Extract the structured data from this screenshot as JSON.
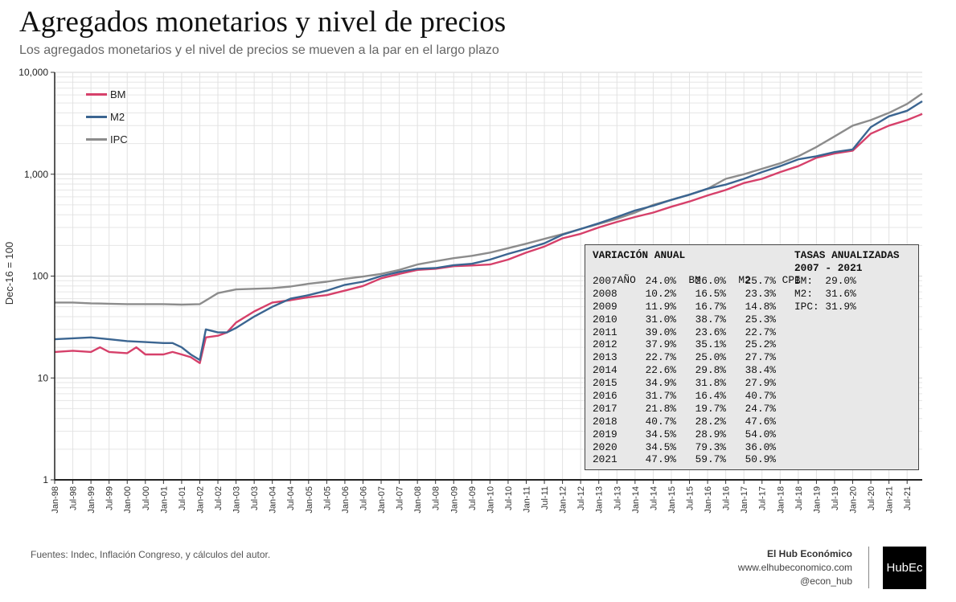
{
  "header": {
    "title": "Agregados monetarios y nivel de precios",
    "subtitle": "Los agregados monetarios y el nivel de precios se mueven a la par en el largo plazo"
  },
  "footer": {
    "sources": "Fuentes: Indec, Inflación Congreso, y cálculos del autor.",
    "brand_name": "El Hub Económico",
    "brand_url": "www.elhubeconomico.com",
    "brand_handle": "@econ_hub",
    "logo_text": "HubEc"
  },
  "colors": {
    "BM": "#d6406a",
    "M2": "#3b6591",
    "IPC": "#8c8c8c",
    "table_bg": "#e8e8e8",
    "grid": "#dddddd"
  },
  "table": {
    "heading": "VARIACIÓN ANUAL",
    "columns": [
      "AÑO",
      "BM",
      "M2",
      "CPI"
    ],
    "rows": [
      [
        "2007",
        "24.0%",
        "26.0%",
        "25.7%"
      ],
      [
        "2008",
        "10.2%",
        "16.5%",
        "23.3%"
      ],
      [
        "2009",
        "11.9%",
        "16.7%",
        "14.8%"
      ],
      [
        "2010",
        "31.0%",
        "38.7%",
        "25.3%"
      ],
      [
        "2011",
        "39.0%",
        "23.6%",
        "22.7%"
      ],
      [
        "2012",
        "37.9%",
        "35.1%",
        "25.2%"
      ],
      [
        "2013",
        "22.7%",
        "25.0%",
        "27.7%"
      ],
      [
        "2014",
        "22.6%",
        "29.8%",
        "38.4%"
      ],
      [
        "2015",
        "34.9%",
        "31.8%",
        "27.9%"
      ],
      [
        "2016",
        "31.7%",
        "16.4%",
        "40.7%"
      ],
      [
        "2017",
        "21.8%",
        "19.7%",
        "24.7%"
      ],
      [
        "2018",
        "40.7%",
        "28.2%",
        "47.6%"
      ],
      [
        "2019",
        "34.5%",
        "28.9%",
        "54.0%"
      ],
      [
        "2020",
        "34.5%",
        "79.3%",
        "36.0%"
      ],
      [
        "2021",
        "47.9%",
        "59.7%",
        "50.9%"
      ]
    ],
    "rates_heading_1": "TASAS ANUALIZADAS",
    "rates_heading_2": "2007 - 2021",
    "rates": [
      "BM:  29.0%",
      "M2:  31.6%",
      "IPC: 31.9%"
    ]
  },
  "chart_data": {
    "type": "line",
    "title": "Agregados monetarios y nivel de precios",
    "subtitle": "Los agregados monetarios y el nivel de precios se mueven a la par en el largo plazo",
    "xlabel": "",
    "ylabel": "Dec-16 = 100",
    "y_scale": "log",
    "ylim": [
      1,
      10000
    ],
    "y_ticks": [
      1,
      10,
      100,
      1000,
      10000
    ],
    "y_tick_labels": [
      "1",
      "10",
      "100",
      "1,000",
      "10,000"
    ],
    "x_range": [
      "1998-01",
      "2021-12"
    ],
    "x_tick_labels": [
      "Jan-98",
      "Jul-98",
      "Jan-99",
      "Jul-99",
      "Jan-00",
      "Jul-00",
      "Jan-01",
      "Jul-01",
      "Jan-02",
      "Jul-02",
      "Jan-03",
      "Jul-03",
      "Jan-04",
      "Jul-04",
      "Jan-05",
      "Jul-05",
      "Jan-06",
      "Jul-06",
      "Jan-07",
      "Jul-07",
      "Jan-08",
      "Jul-08",
      "Jan-09",
      "Jul-09",
      "Jan-10",
      "Jul-10",
      "Jan-11",
      "Jul-11",
      "Jan-12",
      "Jul-12",
      "Jan-13",
      "Jul-13",
      "Jan-14",
      "Jul-14",
      "Jan-15",
      "Jul-15",
      "Jan-16",
      "Jul-16",
      "Jan-17",
      "Jul-17",
      "Jan-18",
      "Jul-18",
      "Jan-19",
      "Jul-19",
      "Jan-20",
      "Jul-20",
      "Jan-21",
      "Jul-21"
    ],
    "grid": true,
    "legend_position": "top-left",
    "series": [
      {
        "name": "BM",
        "color": "#d6406a",
        "points": [
          [
            "1998-01",
            18
          ],
          [
            "1998-07",
            18.5
          ],
          [
            "1999-01",
            18
          ],
          [
            "1999-04",
            20
          ],
          [
            "1999-07",
            18
          ],
          [
            "2000-01",
            17.5
          ],
          [
            "2000-04",
            20
          ],
          [
            "2000-07",
            17
          ],
          [
            "2001-01",
            17
          ],
          [
            "2001-04",
            18
          ],
          [
            "2001-07",
            17
          ],
          [
            "2001-10",
            16
          ],
          [
            "2002-01",
            14
          ],
          [
            "2002-03",
            25
          ],
          [
            "2002-07",
            26
          ],
          [
            "2002-10",
            28
          ],
          [
            "2003-01",
            35
          ],
          [
            "2003-07",
            45
          ],
          [
            "2004-01",
            55
          ],
          [
            "2004-07",
            58
          ],
          [
            "2005-01",
            62
          ],
          [
            "2005-07",
            65
          ],
          [
            "2006-01",
            72
          ],
          [
            "2006-07",
            80
          ],
          [
            "2007-01",
            95
          ],
          [
            "2007-07",
            105
          ],
          [
            "2008-01",
            115
          ],
          [
            "2008-07",
            118
          ],
          [
            "2009-01",
            125
          ],
          [
            "2009-07",
            127
          ],
          [
            "2010-01",
            130
          ],
          [
            "2010-07",
            145
          ],
          [
            "2011-01",
            170
          ],
          [
            "2011-07",
            195
          ],
          [
            "2012-01",
            235
          ],
          [
            "2012-07",
            260
          ],
          [
            "2013-01",
            300
          ],
          [
            "2013-07",
            340
          ],
          [
            "2014-01",
            380
          ],
          [
            "2014-07",
            420
          ],
          [
            "2015-01",
            480
          ],
          [
            "2015-07",
            540
          ],
          [
            "2016-01",
            620
          ],
          [
            "2016-07",
            700
          ],
          [
            "2017-01",
            820
          ],
          [
            "2017-07",
            900
          ],
          [
            "2018-01",
            1050
          ],
          [
            "2018-07",
            1200
          ],
          [
            "2019-01",
            1450
          ],
          [
            "2019-07",
            1600
          ],
          [
            "2020-01",
            1700
          ],
          [
            "2020-07",
            2500
          ],
          [
            "2021-01",
            3000
          ],
          [
            "2021-07",
            3400
          ],
          [
            "2021-12",
            3900
          ]
        ]
      },
      {
        "name": "M2",
        "color": "#3b6591",
        "points": [
          [
            "1998-01",
            24
          ],
          [
            "1998-07",
            24.5
          ],
          [
            "1999-01",
            25
          ],
          [
            "1999-07",
            24
          ],
          [
            "2000-01",
            23
          ],
          [
            "2000-07",
            22.5
          ],
          [
            "2001-01",
            22
          ],
          [
            "2001-04",
            22
          ],
          [
            "2001-07",
            20
          ],
          [
            "2001-10",
            17
          ],
          [
            "2002-01",
            15
          ],
          [
            "2002-03",
            30
          ],
          [
            "2002-07",
            28
          ],
          [
            "2002-10",
            28
          ],
          [
            "2003-01",
            31
          ],
          [
            "2003-07",
            40
          ],
          [
            "2004-01",
            50
          ],
          [
            "2004-07",
            60
          ],
          [
            "2005-01",
            65
          ],
          [
            "2005-07",
            72
          ],
          [
            "2006-01",
            82
          ],
          [
            "2006-07",
            88
          ],
          [
            "2007-01",
            100
          ],
          [
            "2007-07",
            110
          ],
          [
            "2008-01",
            118
          ],
          [
            "2008-07",
            120
          ],
          [
            "2009-01",
            128
          ],
          [
            "2009-07",
            132
          ],
          [
            "2010-01",
            145
          ],
          [
            "2010-07",
            165
          ],
          [
            "2011-01",
            185
          ],
          [
            "2011-07",
            210
          ],
          [
            "2012-01",
            255
          ],
          [
            "2012-07",
            290
          ],
          [
            "2013-01",
            330
          ],
          [
            "2013-07",
            380
          ],
          [
            "2014-01",
            440
          ],
          [
            "2014-07",
            490
          ],
          [
            "2015-01",
            560
          ],
          [
            "2015-07",
            630
          ],
          [
            "2016-01",
            720
          ],
          [
            "2016-07",
            790
          ],
          [
            "2017-01",
            900
          ],
          [
            "2017-07",
            1050
          ],
          [
            "2018-01",
            1200
          ],
          [
            "2018-07",
            1400
          ],
          [
            "2019-01",
            1500
          ],
          [
            "2019-07",
            1650
          ],
          [
            "2020-01",
            1750
          ],
          [
            "2020-07",
            2900
          ],
          [
            "2021-01",
            3700
          ],
          [
            "2021-07",
            4200
          ],
          [
            "2021-12",
            5200
          ]
        ]
      },
      {
        "name": "IPC",
        "color": "#8c8c8c",
        "points": [
          [
            "1998-01",
            55
          ],
          [
            "1998-07",
            55
          ],
          [
            "1999-01",
            54
          ],
          [
            "1999-07",
            53.5
          ],
          [
            "2000-01",
            53
          ],
          [
            "2000-07",
            53
          ],
          [
            "2001-01",
            53
          ],
          [
            "2001-07",
            52.5
          ],
          [
            "2002-01",
            53
          ],
          [
            "2002-04",
            60
          ],
          [
            "2002-07",
            68
          ],
          [
            "2003-01",
            74
          ],
          [
            "2003-07",
            75
          ],
          [
            "2004-01",
            76
          ],
          [
            "2004-07",
            79
          ],
          [
            "2005-01",
            84
          ],
          [
            "2005-07",
            88
          ],
          [
            "2006-01",
            94
          ],
          [
            "2006-07",
            99
          ],
          [
            "2007-01",
            105
          ],
          [
            "2007-07",
            115
          ],
          [
            "2008-01",
            130
          ],
          [
            "2008-07",
            140
          ],
          [
            "2009-01",
            150
          ],
          [
            "2009-07",
            158
          ],
          [
            "2010-01",
            170
          ],
          [
            "2010-07",
            188
          ],
          [
            "2011-01",
            208
          ],
          [
            "2011-07",
            232
          ],
          [
            "2012-01",
            258
          ],
          [
            "2012-07",
            290
          ],
          [
            "2013-01",
            325
          ],
          [
            "2013-07",
            365
          ],
          [
            "2014-01",
            420
          ],
          [
            "2014-07",
            500
          ],
          [
            "2015-01",
            560
          ],
          [
            "2015-07",
            630
          ],
          [
            "2016-01",
            720
          ],
          [
            "2016-07",
            900
          ],
          [
            "2017-01",
            1000
          ],
          [
            "2017-07",
            1130
          ],
          [
            "2018-01",
            1280
          ],
          [
            "2018-07",
            1500
          ],
          [
            "2019-01",
            1850
          ],
          [
            "2019-07",
            2350
          ],
          [
            "2020-01",
            3000
          ],
          [
            "2020-07",
            3400
          ],
          [
            "2021-01",
            4000
          ],
          [
            "2021-07",
            4900
          ],
          [
            "2021-12",
            6200
          ]
        ]
      }
    ]
  }
}
